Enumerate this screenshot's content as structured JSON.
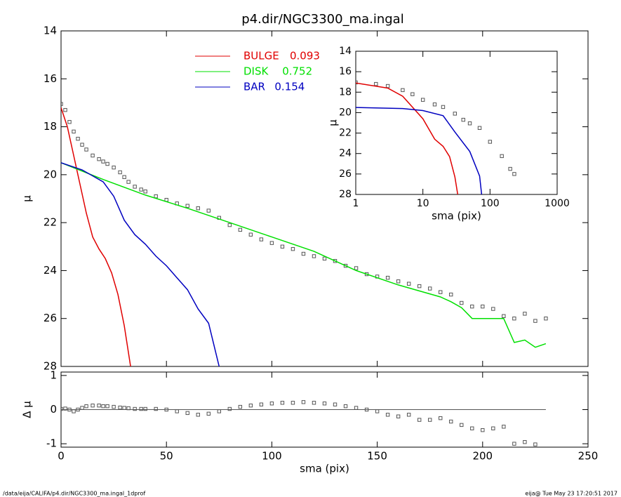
{
  "chart_data": [
    {
      "type": "line",
      "title": "p4.dir/NGC3300_ma.ingal",
      "ylabel": "μ",
      "xlim": [
        0,
        250
      ],
      "xticks": [
        0,
        50,
        100,
        150,
        200,
        250
      ],
      "ylim": [
        28,
        14
      ],
      "yticks": [
        14,
        16,
        18,
        20,
        22,
        24,
        26,
        28
      ],
      "series": [
        {
          "style": "markers",
          "color": "#555555",
          "x": [
            0,
            2,
            4,
            6,
            8,
            10,
            12,
            15,
            18,
            20,
            22,
            25,
            28,
            30,
            32,
            35,
            38,
            40,
            45,
            50,
            55,
            60,
            65,
            70,
            75,
            80,
            85,
            90,
            95,
            100,
            105,
            110,
            115,
            120,
            125,
            130,
            135,
            140,
            145,
            150,
            155,
            160,
            165,
            170,
            175,
            180,
            185,
            190,
            195,
            200,
            205,
            210,
            215,
            220,
            225,
            230
          ],
          "values": [
            17.05,
            17.3,
            17.8,
            18.2,
            18.5,
            18.75,
            18.95,
            19.2,
            19.35,
            19.45,
            19.55,
            19.7,
            19.9,
            20.1,
            20.3,
            20.5,
            20.62,
            20.7,
            20.9,
            21.05,
            21.2,
            21.3,
            21.4,
            21.5,
            21.8,
            22.1,
            22.3,
            22.5,
            22.7,
            22.85,
            23.0,
            23.1,
            23.3,
            23.4,
            23.5,
            23.6,
            23.8,
            23.9,
            24.15,
            24.25,
            24.3,
            24.45,
            24.55,
            24.65,
            24.75,
            24.9,
            25.0,
            25.35,
            25.5,
            25.5,
            25.6,
            25.9,
            26.0,
            25.8,
            26.1,
            26.0
          ]
        },
        {
          "name": "BULGE",
          "fraction": 0.093,
          "style": "line",
          "color": "#e00000",
          "x": [
            0,
            3,
            6,
            9,
            12,
            15,
            18,
            21,
            24,
            27,
            30,
            33
          ],
          "values": [
            17.2,
            18.0,
            19.2,
            20.4,
            21.6,
            22.6,
            23.1,
            23.5,
            24.1,
            25.0,
            26.3,
            28.0
          ]
        },
        {
          "name": "DISK",
          "fraction": 0.752,
          "style": "line",
          "color": "#00e000",
          "x": [
            0,
            20,
            40,
            60,
            80,
            100,
            120,
            140,
            160,
            180,
            185,
            190,
            195,
            205,
            210,
            215,
            220,
            225,
            230
          ],
          "values": [
            19.5,
            20.2,
            20.85,
            21.4,
            22.0,
            22.6,
            23.2,
            24.0,
            24.6,
            25.1,
            25.3,
            25.55,
            26.0,
            26.0,
            26.0,
            27.0,
            26.9,
            27.2,
            27.05
          ]
        },
        {
          "name": "BAR",
          "fraction": 0.154,
          "style": "line",
          "color": "#0000c0",
          "x": [
            0,
            10,
            20,
            25,
            30,
            35,
            40,
            45,
            50,
            55,
            60,
            65,
            70,
            75
          ],
          "values": [
            19.5,
            19.8,
            20.3,
            20.9,
            21.9,
            22.5,
            22.9,
            23.4,
            23.8,
            24.3,
            24.8,
            25.6,
            26.2,
            28.0
          ]
        }
      ]
    },
    {
      "type": "line",
      "xlabel": "sma (pix)",
      "ylabel": "Δ μ",
      "xlim": [
        0,
        250
      ],
      "xticks": [
        0,
        50,
        100,
        150,
        200,
        250
      ],
      "ylim": [
        -1.1,
        1.1
      ],
      "yticks": [
        -1,
        0,
        1
      ],
      "series": [
        {
          "style": "markers",
          "color": "#555555",
          "x": [
            0,
            2,
            4,
            6,
            8,
            10,
            12,
            15,
            18,
            20,
            22,
            25,
            28,
            30,
            32,
            35,
            38,
            40,
            45,
            50,
            55,
            60,
            65,
            70,
            75,
            80,
            85,
            90,
            95,
            100,
            105,
            110,
            115,
            120,
            125,
            130,
            135,
            140,
            145,
            150,
            155,
            160,
            165,
            170,
            175,
            180,
            185,
            190,
            195,
            200,
            205,
            210,
            215,
            220,
            225,
            230
          ],
          "values": [
            0.02,
            0.03,
            0.0,
            -0.05,
            0.0,
            0.05,
            0.1,
            0.12,
            0.12,
            0.1,
            0.1,
            0.08,
            0.06,
            0.05,
            0.04,
            0.02,
            0.02,
            0.02,
            0.02,
            0.0,
            -0.05,
            -0.1,
            -0.15,
            -0.12,
            -0.05,
            0.02,
            0.08,
            0.12,
            0.15,
            0.18,
            0.2,
            0.2,
            0.22,
            0.2,
            0.18,
            0.15,
            0.1,
            0.05,
            0.0,
            -0.05,
            -0.15,
            -0.2,
            -0.15,
            -0.3,
            -0.3,
            -0.25,
            -0.35,
            -0.45,
            -0.55,
            -0.6,
            -0.55,
            -0.5,
            -1.0,
            -0.95,
            -1.02,
            null
          ]
        }
      ]
    },
    {
      "type": "line",
      "log_x": true,
      "xlabel": "sma (pix)",
      "ylabel": "μ",
      "xlim": [
        1,
        1000
      ],
      "xticks": [
        1,
        10,
        100,
        1000
      ],
      "ylim": [
        28,
        14
      ],
      "yticks": [
        14,
        16,
        18,
        20,
        22,
        24,
        26,
        28
      ],
      "series": [
        {
          "style": "markers",
          "color": "#555555",
          "x": [
            1,
            2,
            3,
            5,
            7,
            10,
            15,
            20,
            30,
            40,
            50,
            70,
            100,
            150,
            200,
            230
          ],
          "values": [
            17.05,
            17.2,
            17.4,
            17.8,
            18.2,
            18.75,
            19.2,
            19.45,
            20.1,
            20.7,
            21.05,
            21.5,
            22.85,
            24.25,
            25.5,
            26.0
          ]
        },
        {
          "style": "line",
          "color": "#e00000",
          "x": [
            1,
            3,
            5,
            10,
            15,
            20,
            25,
            30,
            33
          ],
          "values": [
            17.1,
            17.6,
            18.4,
            20.6,
            22.6,
            23.3,
            24.3,
            26.3,
            28.0
          ]
        },
        {
          "style": "line",
          "color": "#0000c0",
          "x": [
            1,
            5,
            10,
            20,
            30,
            50,
            70,
            75
          ],
          "values": [
            19.5,
            19.6,
            19.8,
            20.3,
            21.9,
            23.8,
            26.2,
            28.0
          ]
        }
      ]
    }
  ],
  "footer": {
    "left": "/data/eija/CALIFA/p4.dir/NGC3300_ma.ingal_1dprof",
    "right": "eija@  Tue May 23 17:20:51 2017"
  }
}
